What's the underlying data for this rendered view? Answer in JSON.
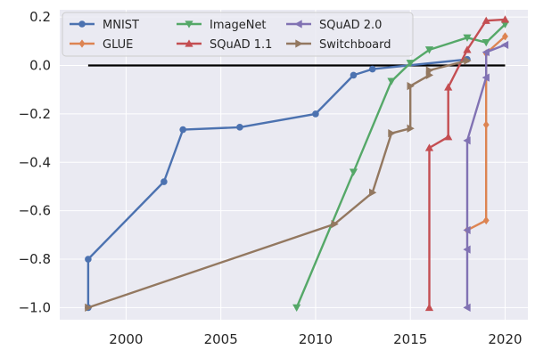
{
  "chart_data": {
    "type": "line",
    "title": "",
    "xlabel": "",
    "ylabel": "",
    "xlim": [
      1996.5,
      2021.2
    ],
    "ylim": [
      -1.05,
      0.23
    ],
    "xticks": [
      2000,
      2005,
      2010,
      2015,
      2020
    ],
    "xtick_labels": [
      "2000",
      "2005",
      "2010",
      "2015",
      "2020"
    ],
    "yticks": [
      -1.0,
      -0.8,
      -0.6,
      -0.4,
      -0.2,
      0.0,
      0.2
    ],
    "ytick_labels": [
      "−1.0",
      "−0.8",
      "−0.6",
      "−0.4",
      "−0.2",
      "0.0",
      "0.2"
    ],
    "grid": true,
    "background": "#eaeaf2",
    "legend_position": "top-left",
    "baseline": {
      "y": 0.0,
      "x": [
        1998,
        2020
      ],
      "color": "#000000"
    },
    "series": [
      {
        "name": "MNIST",
        "color": "#4c72b0",
        "marker": "circle",
        "x": [
          1998,
          1998,
          2002,
          2003,
          2006,
          2010,
          2012,
          2013,
          2018
        ],
        "y": [
          -1.0,
          -0.8,
          -0.48,
          -0.265,
          -0.255,
          -0.2,
          -0.04,
          -0.015,
          0.025
        ]
      },
      {
        "name": "GLUE",
        "color": "#dd8452",
        "marker": "diamond",
        "x": [
          2018,
          2019,
          2019,
          2019,
          2020
        ],
        "y": [
          -0.68,
          -0.64,
          -0.245,
          0.05,
          0.12
        ]
      },
      {
        "name": "ImageNet",
        "color": "#55a868",
        "marker": "triangle-down",
        "x": [
          2009,
          2012,
          2014,
          2015,
          2016,
          2018,
          2019,
          2020
        ],
        "y": [
          -1.0,
          -0.44,
          -0.065,
          0.01,
          0.065,
          0.115,
          0.095,
          0.17
        ]
      },
      {
        "name": "SQuAD 1.1",
        "color": "#c44e52",
        "marker": "triangle-up",
        "x": [
          2016,
          2016,
          2017,
          2017,
          2018,
          2019,
          2020
        ],
        "y": [
          -1.0,
          -0.34,
          -0.295,
          -0.09,
          0.065,
          0.185,
          0.19
        ]
      },
      {
        "name": "SQuAD 2.0",
        "color": "#8172b3",
        "marker": "triangle-left",
        "x": [
          2018,
          2018,
          2018,
          2018,
          2019,
          2019,
          2020
        ],
        "y": [
          -1.0,
          -0.76,
          -0.68,
          -0.31,
          -0.05,
          0.055,
          0.085
        ]
      },
      {
        "name": "Switchboard",
        "color": "#937860",
        "marker": "triangle-right",
        "x": [
          1998,
          2011,
          2013,
          2014,
          2015,
          2015,
          2016,
          2016,
          2018
        ],
        "y": [
          -1.0,
          -0.655,
          -0.525,
          -0.28,
          -0.26,
          -0.085,
          -0.04,
          -0.02,
          0.02
        ]
      }
    ]
  }
}
